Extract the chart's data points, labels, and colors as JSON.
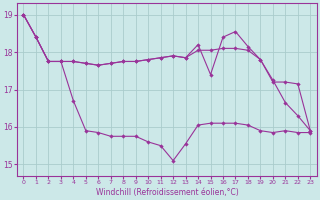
{
  "xlabel": "Windchill (Refroidissement éolien,°C)",
  "background_color": "#cce8e8",
  "grid_color": "#aacccc",
  "line_color": "#993399",
  "xlim": [
    -0.5,
    23.5
  ],
  "ylim": [
    14.7,
    19.3
  ],
  "xticks": [
    0,
    1,
    2,
    3,
    4,
    5,
    6,
    7,
    8,
    9,
    10,
    11,
    12,
    13,
    14,
    15,
    16,
    17,
    18,
    19,
    20,
    21,
    22,
    23
  ],
  "yticks": [
    15,
    16,
    17,
    18,
    19
  ],
  "series1_x": [
    0,
    1,
    2,
    3,
    4,
    5,
    6,
    7,
    8,
    9,
    10,
    11,
    12,
    13,
    14,
    15,
    16,
    17,
    18,
    19,
    20,
    21,
    22,
    23
  ],
  "series1_y": [
    19.0,
    18.4,
    17.75,
    17.75,
    17.75,
    17.7,
    17.65,
    17.7,
    17.75,
    17.75,
    17.8,
    17.85,
    17.9,
    17.85,
    18.05,
    18.05,
    18.1,
    18.1,
    18.05,
    17.8,
    17.2,
    17.2,
    17.15,
    15.9
  ],
  "series2_x": [
    0,
    1,
    2,
    3,
    4,
    5,
    6,
    7,
    8,
    9,
    10,
    11,
    12,
    13,
    14,
    15,
    16,
    17,
    18,
    19,
    20,
    21,
    22,
    23
  ],
  "series2_y": [
    19.0,
    18.4,
    17.75,
    17.75,
    16.7,
    15.9,
    15.85,
    15.75,
    15.75,
    15.75,
    15.6,
    15.5,
    15.1,
    15.55,
    16.05,
    16.1,
    16.1,
    16.1,
    16.05,
    15.9,
    15.85,
    15.9,
    15.85,
    15.85
  ],
  "series3_x": [
    0,
    1,
    2,
    3,
    4,
    5,
    6,
    7,
    8,
    9,
    10,
    11,
    12,
    13,
    14,
    15,
    16,
    17,
    18,
    19,
    20,
    21,
    22,
    23
  ],
  "series3_y": [
    19.0,
    18.4,
    17.75,
    17.75,
    17.75,
    17.7,
    17.65,
    17.7,
    17.75,
    17.75,
    17.8,
    17.85,
    17.9,
    17.85,
    18.2,
    17.4,
    18.4,
    18.55,
    18.15,
    17.8,
    17.25,
    16.65,
    16.3,
    15.9
  ]
}
